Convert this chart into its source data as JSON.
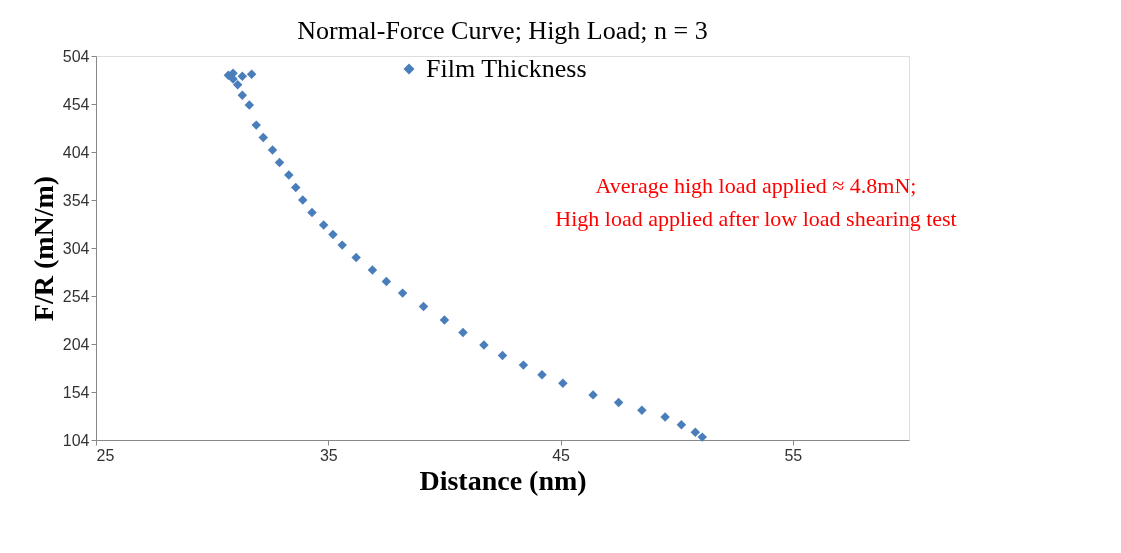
{
  "chart_data": {
    "type": "scatter",
    "title": "Normal-Force Curve; High Load; n = 3",
    "xlabel": "Distance (nm)",
    "ylabel": "F/R (mN/m)",
    "xlim": [
      25,
      60
    ],
    "xticks": [
      25,
      35,
      45,
      55
    ],
    "ylim": [
      104,
      504
    ],
    "yticks": [
      104,
      154,
      204,
      254,
      304,
      354,
      404,
      454,
      504
    ],
    "grid": false,
    "legend": "top",
    "marker": "diamond",
    "annotations": [
      "Average high load applied ≈ 4.8mN;",
      "High load applied after low load shearing test"
    ],
    "series": [
      {
        "name": "Film Thickness",
        "color": "#4a7ebb",
        "x": [
          51.1,
          50.8,
          50.2,
          49.5,
          48.5,
          47.5,
          46.4,
          45.1,
          44.2,
          43.4,
          42.5,
          41.7,
          40.8,
          40.0,
          39.1,
          38.2,
          37.5,
          36.9,
          36.2,
          35.6,
          35.2,
          34.8,
          34.3,
          33.9,
          33.6,
          33.3,
          32.9,
          32.6,
          32.2,
          31.9,
          31.6,
          31.3,
          31.1,
          30.9,
          30.7,
          30.9,
          31.3,
          31.7
        ],
        "values": [
          107,
          112,
          120,
          128,
          135,
          143,
          151,
          163,
          172,
          182,
          192,
          203,
          216,
          229,
          243,
          257,
          269,
          281,
          294,
          307,
          318,
          328,
          341,
          354,
          367,
          380,
          393,
          406,
          419,
          432,
          453,
          463,
          474,
          480,
          484,
          486,
          483,
          485
        ]
      }
    ]
  }
}
